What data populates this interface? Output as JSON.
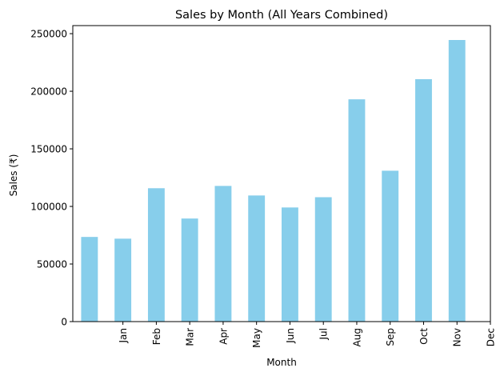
{
  "chart_data": {
    "type": "bar",
    "title": "Sales by Month (All Years Combined)",
    "xlabel": "Month",
    "ylabel": "Sales (₹)",
    "ylim": [
      0,
      257000
    ],
    "y_ticks": [
      "0",
      "50000",
      "100000",
      "150000",
      "200000",
      "250000"
    ],
    "x_tick_labels": [
      "Jan",
      "Feb",
      "Mar",
      "Apr",
      "May",
      "Jun",
      "Jul",
      "Aug",
      "Sep",
      "Oct",
      "Nov",
      "Dec"
    ],
    "values": [
      73500,
      72000,
      115800,
      89500,
      117800,
      109500,
      99100,
      108000,
      193000,
      131000,
      210500,
      244500
    ],
    "bar_color": "#87ceeb",
    "grid": false,
    "legend": "none"
  }
}
